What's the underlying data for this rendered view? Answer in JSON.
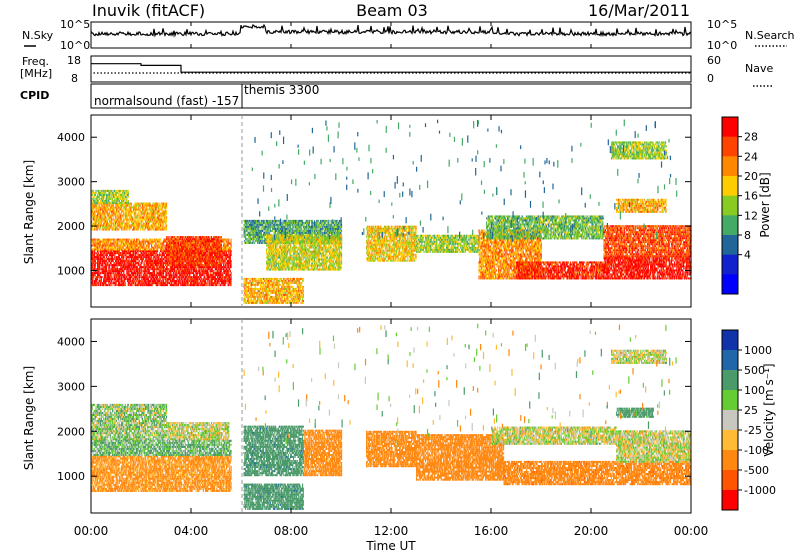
{
  "header": {
    "station": "Inuvik (fitACF)",
    "beam": "Beam 03",
    "date": "16/Mar/2011"
  },
  "noise_panel": {
    "left_label": "N.Sky",
    "left_ticks": [
      "10^5",
      "10^0"
    ],
    "right_label": "N.Search",
    "right_ticks": [
      "10^5",
      "10^0"
    ]
  },
  "freq_panel": {
    "left_label_1": "Freq.",
    "left_label_2": "[MHz]",
    "left_ticks": [
      "18",
      "8"
    ],
    "right_label": "Nave",
    "right_ticks": [
      "60",
      "0"
    ]
  },
  "cpid_panel": {
    "label": "CPID",
    "entry_1": "normalsound (fast) -157",
    "entry_2": "themis 3300"
  },
  "power_panel": {
    "ylabel": "Slant Range [km]",
    "yticks": [
      "4000",
      "3000",
      "2000",
      "1000"
    ],
    "colorbar_label": "Power [dB]",
    "colorbar_ticks": [
      "28",
      "24",
      "20",
      "16",
      "12",
      "8",
      "4"
    ],
    "colorbar_colors": [
      "#ff0000",
      "#ff4400",
      "#ff8800",
      "#ffcc00",
      "#88cc22",
      "#44aa66",
      "#226699",
      "#1122cc",
      "#0000ff"
    ]
  },
  "velocity_panel": {
    "ylabel": "Slant Range [km]",
    "yticks": [
      "4000",
      "3000",
      "2000",
      "1000"
    ],
    "colorbar_label": "Velocity [m s⁻¹]",
    "colorbar_ticks": [
      "1000",
      "500",
      "100",
      "25",
      "-25",
      "-100",
      "-500",
      "-1000"
    ],
    "colorbar_colors": [
      "#1133aa",
      "#2266aa",
      "#4a9a6a",
      "#66cc33",
      "#c8c8c0",
      "#ffbb33",
      "#ff8811",
      "#ff5500",
      "#ff0000"
    ]
  },
  "xaxis": {
    "ticks": [
      "00:00",
      "04:00",
      "08:00",
      "12:00",
      "16:00",
      "20:00",
      "00:00"
    ],
    "label": "Time UT"
  },
  "chart_data": {
    "type": "heatmap",
    "x_range_hours": [
      0,
      24
    ],
    "y_range_km": [
      180,
      4500
    ],
    "noise_log_range": [
      0,
      5
    ],
    "power_bands": [
      {
        "t0": 0.0,
        "t1": 5.6,
        "r0": 650,
        "r1": 1450,
        "value_db": 30
      },
      {
        "t0": 0.0,
        "t1": 5.6,
        "r0": 1450,
        "r1": 1700,
        "value_db": 22
      },
      {
        "t0": 3.0,
        "t1": 5.2,
        "r0": 1100,
        "r1": 1750,
        "value_db": 27
      },
      {
        "t0": 0.0,
        "t1": 3.0,
        "r0": 1900,
        "r1": 2500,
        "value_db": 20
      },
      {
        "t0": 0.0,
        "t1": 1.5,
        "r0": 2500,
        "r1": 2800,
        "value_db": 14
      },
      {
        "t0": 6.1,
        "t1": 10.0,
        "r0": 1600,
        "r1": 2100,
        "value_db": 10
      },
      {
        "t0": 7.0,
        "t1": 10.0,
        "r0": 1000,
        "r1": 1800,
        "value_db": 16
      },
      {
        "t0": 6.1,
        "t1": 8.5,
        "r0": 250,
        "r1": 800,
        "value_db": 20
      },
      {
        "t0": 11.0,
        "t1": 13.0,
        "r0": 1200,
        "r1": 2000,
        "value_db": 18
      },
      {
        "t0": 13.0,
        "t1": 15.5,
        "r0": 1400,
        "r1": 1800,
        "value_db": 14
      },
      {
        "t0": 15.5,
        "t1": 18.0,
        "r0": 800,
        "r1": 1900,
        "value_db": 22
      },
      {
        "t0": 17.0,
        "t1": 20.5,
        "r0": 800,
        "r1": 1200,
        "value_db": 28
      },
      {
        "t0": 20.5,
        "t1": 24.0,
        "r0": 800,
        "r1": 1300,
        "value_db": 30
      },
      {
        "t0": 20.5,
        "t1": 24.0,
        "r0": 1300,
        "r1": 2000,
        "value_db": 26
      },
      {
        "t0": 15.8,
        "t1": 20.5,
        "r0": 1700,
        "r1": 2200,
        "value_db": 12
      },
      {
        "t0": 21.0,
        "t1": 23.0,
        "r0": 2300,
        "r1": 2600,
        "value_db": 20
      },
      {
        "t0": 20.8,
        "t1": 23.0,
        "r0": 3500,
        "r1": 3900,
        "value_db": 14
      }
    ],
    "velocity_bands": [
      {
        "t0": 0.0,
        "t1": 5.6,
        "r0": 650,
        "r1": 1450,
        "value_ms": -150
      },
      {
        "t0": 0.0,
        "t1": 5.6,
        "r0": 1450,
        "r1": 1800,
        "value_ms": 100
      },
      {
        "t0": 0.0,
        "t1": 3.0,
        "r0": 1800,
        "r1": 2600,
        "value_ms": 50
      },
      {
        "t0": 3.0,
        "t1": 5.5,
        "r0": 1800,
        "r1": 2200,
        "value_ms": 0
      },
      {
        "t0": 6.1,
        "t1": 8.5,
        "r0": 1000,
        "r1": 2100,
        "value_ms": 400
      },
      {
        "t0": 8.5,
        "t1": 10.0,
        "r0": 1000,
        "r1": 2000,
        "value_ms": -200
      },
      {
        "t0": 6.1,
        "t1": 8.5,
        "r0": 250,
        "r1": 800,
        "value_ms": 400
      },
      {
        "t0": 11.0,
        "t1": 13.0,
        "r0": 1200,
        "r1": 2000,
        "value_ms": -200
      },
      {
        "t0": 13.0,
        "t1": 16.5,
        "r0": 900,
        "r1": 1900,
        "value_ms": -300
      },
      {
        "t0": 16.5,
        "t1": 24.0,
        "r0": 800,
        "r1": 1300,
        "value_ms": -400
      },
      {
        "t0": 21.0,
        "t1": 24.0,
        "r0": 1300,
        "r1": 2000,
        "value_ms": 0
      },
      {
        "t0": 16.0,
        "t1": 21.0,
        "r0": 1700,
        "r1": 2100,
        "value_ms": 0
      },
      {
        "t0": 21.0,
        "t1": 22.5,
        "r0": 2300,
        "r1": 2500,
        "value_ms": 200
      },
      {
        "t0": 20.8,
        "t1": 23.0,
        "r0": 3500,
        "r1": 3800,
        "value_ms": 0
      }
    ],
    "noise_sky_levels": [
      {
        "t0": 0.0,
        "t1": 6.0,
        "log_value": 3.0
      },
      {
        "t0": 6.0,
        "t1": 7.0,
        "log_value": 4.6
      },
      {
        "t0": 7.0,
        "t1": 16.0,
        "log_value": 3.4
      },
      {
        "t0": 16.0,
        "t1": 24.0,
        "log_value": 3.0
      }
    ],
    "frequency_mhz": [
      {
        "t0": 0.0,
        "t1": 2.0,
        "value": 17.0
      },
      {
        "t0": 2.0,
        "t1": 3.6,
        "value": 16.0
      },
      {
        "t0": 3.6,
        "t1": 24.0,
        "value": 12.0
      }
    ],
    "nave_level": 20,
    "nave_range": [
      0,
      60
    ]
  }
}
